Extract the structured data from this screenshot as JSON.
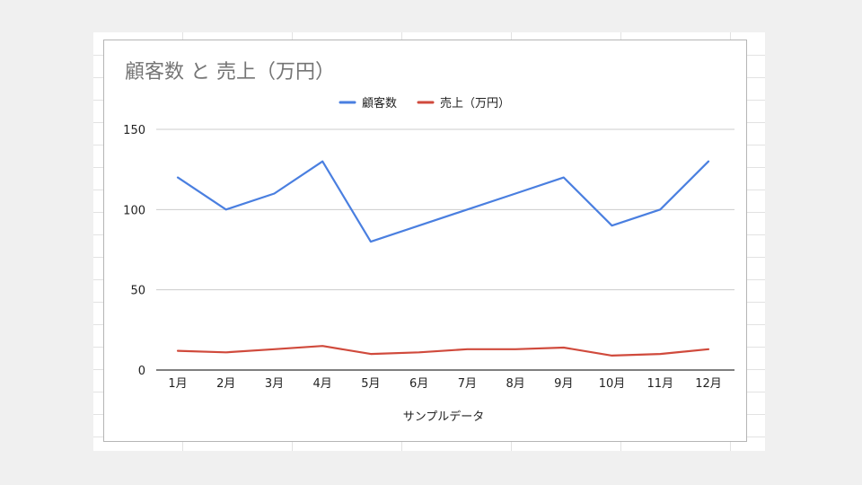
{
  "chart_data": {
    "type": "line",
    "title": "顧客数 と 売上（万円）",
    "xlabel": "サンプルデータ",
    "ylabel": "",
    "categories": [
      "1月",
      "2月",
      "3月",
      "4月",
      "5月",
      "6月",
      "7月",
      "8月",
      "9月",
      "10月",
      "11月",
      "12月"
    ],
    "ylim": [
      0,
      150
    ],
    "yticks": [
      0,
      50,
      100,
      150
    ],
    "legend_position": "top",
    "grid": true,
    "series": [
      {
        "name": "顧客数",
        "color": "#4a7fe0",
        "values": [
          120,
          100,
          110,
          130,
          80,
          90,
          100,
          110,
          120,
          90,
          100,
          130
        ]
      },
      {
        "name": "売上（万円）",
        "color": "#d04a3c",
        "values": [
          12,
          11,
          13,
          15,
          10,
          11,
          13,
          13,
          14,
          9,
          10,
          13
        ]
      }
    ]
  }
}
